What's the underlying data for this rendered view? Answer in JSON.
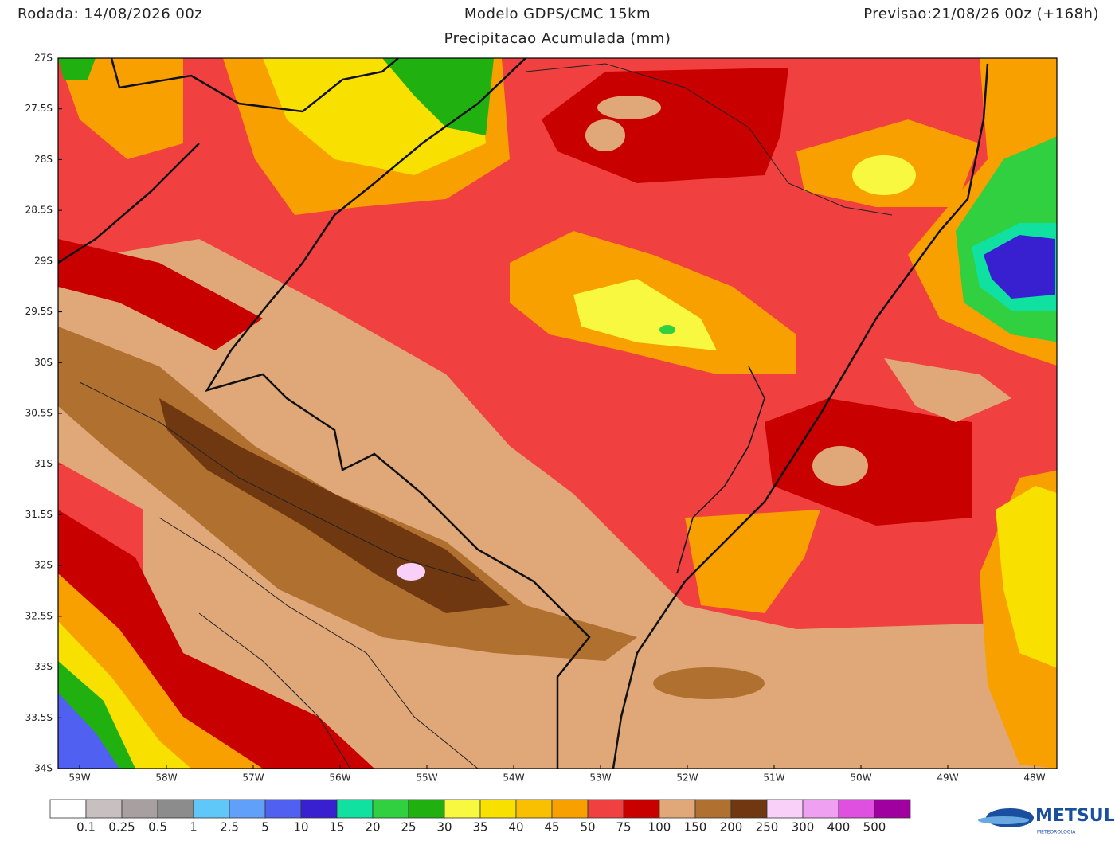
{
  "header": {
    "left": "Rodada: 14/08/2026 00z",
    "title": "Modelo GDPS/CMC 15km",
    "subtitle": "Precipitacao Acumulada (mm)",
    "right": "Previsao:21/08/26 00z (+168h)"
  },
  "map": {
    "lat_labels": [
      "27S",
      "27.5S",
      "28S",
      "28.5S",
      "29S",
      "29.5S",
      "30S",
      "30.5S",
      "31S",
      "31.5S",
      "32S",
      "32.5S",
      "33S",
      "33.5S",
      "34S"
    ],
    "lon_labels": [
      "59W",
      "58W",
      "57W",
      "56W",
      "55W",
      "54W",
      "53W",
      "52W",
      "51W",
      "50W",
      "49W",
      "48W"
    ]
  },
  "colorbar": {
    "labels": [
      "0.1",
      "0.25",
      "0.5",
      "1",
      "2.5",
      "5",
      "10",
      "15",
      "20",
      "25",
      "30",
      "35",
      "40",
      "45",
      "50",
      "75",
      "100",
      "150",
      "200",
      "250",
      "300",
      "400",
      "500"
    ],
    "colors": [
      "#ffffff",
      "#c8c0c0",
      "#a8a0a0",
      "#8c8c8c",
      "#60c8f8",
      "#60a0f8",
      "#5060f0",
      "#3820d0",
      "#10e0a0",
      "#30d040",
      "#20b010",
      "#f8f840",
      "#f8e000",
      "#f8c000",
      "#f8a000",
      "#f04040",
      "#c80000",
      "#e0a878",
      "#b07030",
      "#703810",
      "#f8d0f8",
      "#f0a0f0",
      "#e050e0",
      "#a000a0"
    ]
  },
  "logo": {
    "name": "METSUL",
    "tagline": "METEOROLOGIA"
  }
}
